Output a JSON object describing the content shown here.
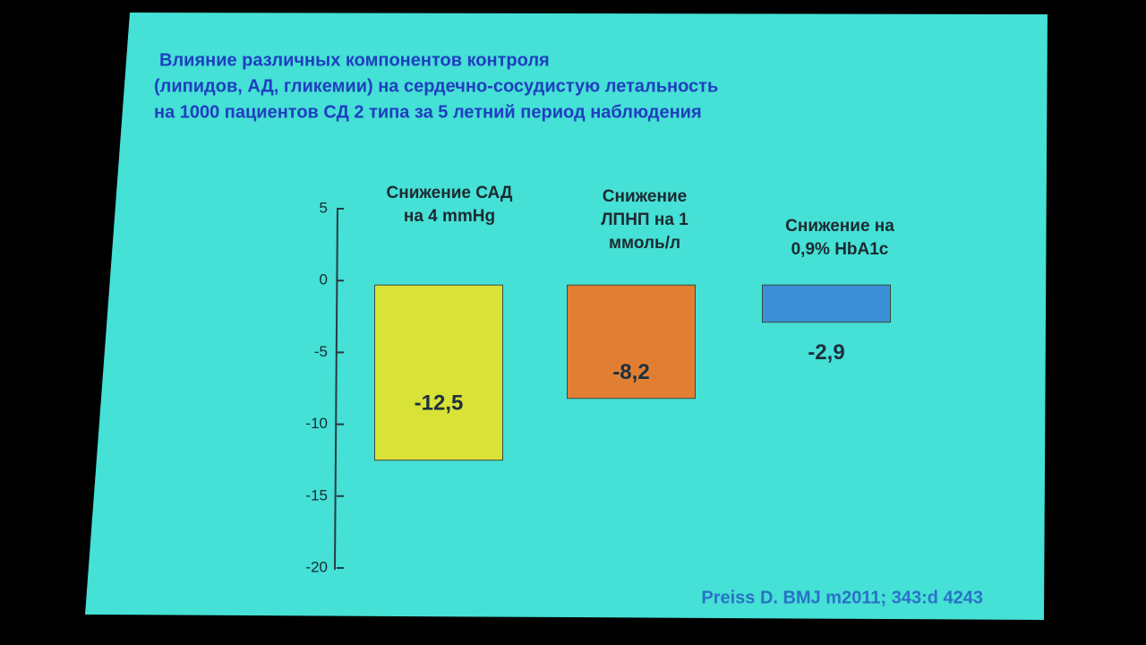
{
  "chart_data": {
    "type": "bar",
    "title": [
      "Влияние различных компонентов контроля",
      "(липидов, АД, гликемии) на сердечно-сосудистую летальность",
      "на 1000 пациентов СД 2 типа за 5 летний период наблюдения"
    ],
    "categories": [
      "Снижение САД на 4 mmHg",
      "Снижение ЛПНП на 1 ммоль/л",
      "Снижение на 0,9% HbA1c"
    ],
    "values": [
      -12.5,
      -8.2,
      -2.9
    ],
    "value_labels": [
      "-12,5",
      "-8,2",
      "-2,9"
    ],
    "colors": [
      "#d9e236",
      "#e07f34",
      "#3b8fd6"
    ],
    "ylim": [
      -20,
      5
    ],
    "yticks": [
      -20,
      -15,
      -10,
      -5,
      0,
      5
    ],
    "source": "Preiss D. BMJ m2011; 343:d 4243"
  }
}
